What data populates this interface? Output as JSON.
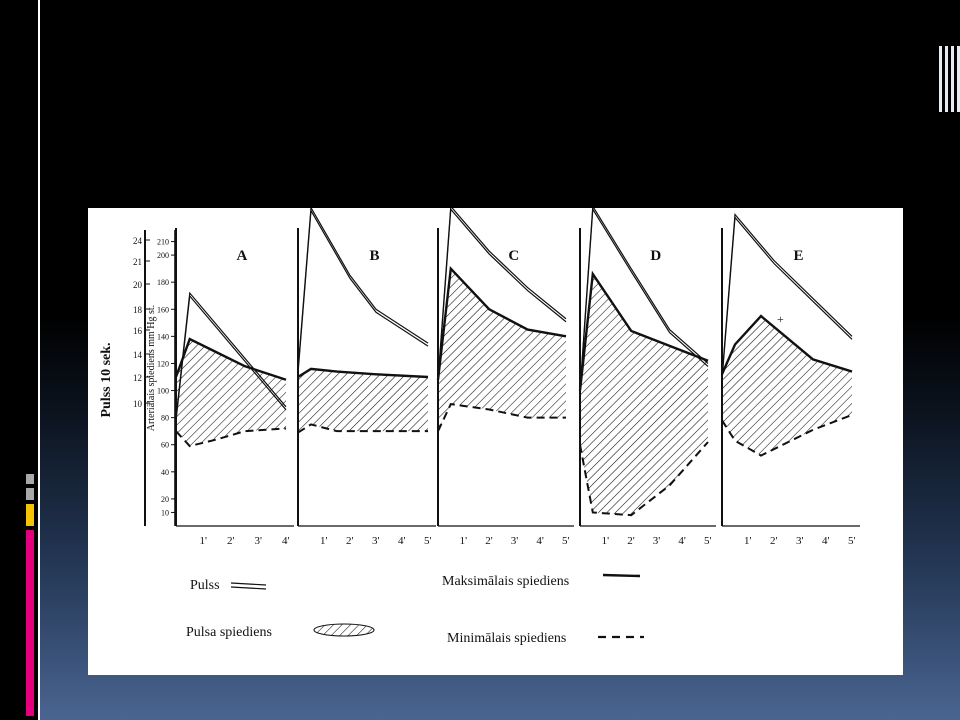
{
  "colors": {
    "background_top": "#000000",
    "background_bottom": "#4a6591",
    "ink": "#111111",
    "deco_gray": "#a8a8a8",
    "deco_yellow": "#f5c400",
    "deco_pink": "#e4007c"
  },
  "chart_data": {
    "type": "line",
    "y_axis_pulse": {
      "label": "Pulss  10  sek.",
      "ticks": [
        "24",
        "21",
        "20",
        "18",
        "16",
        "14",
        "12",
        "10"
      ]
    },
    "y_axis_pressure": {
      "label": "Arteriālais spiediens  mm Hg st.",
      "ticks": [
        "210",
        "200",
        "180",
        "160",
        "140",
        "120",
        "100",
        "80",
        "60",
        "40",
        "20",
        "10"
      ]
    },
    "x_ticks": [
      "1'",
      "2'",
      "3'",
      "4'",
      "5'"
    ],
    "panels": [
      {
        "label": "A",
        "pulse": [
          [
            0,
            80
          ],
          [
            0.5,
            172
          ],
          [
            4,
            88
          ]
        ],
        "max": [
          [
            0,
            110
          ],
          [
            0.5,
            138
          ],
          [
            1.5,
            128
          ],
          [
            2.5,
            118
          ],
          [
            4,
            108
          ]
        ],
        "min": [
          [
            0,
            70
          ],
          [
            0.5,
            59
          ],
          [
            1.5,
            64
          ],
          [
            2.5,
            70
          ],
          [
            4,
            72
          ]
        ]
      },
      {
        "label": "B",
        "pulse": [
          [
            0,
            115
          ],
          [
            0.5,
            235
          ],
          [
            2,
            185
          ],
          [
            3,
            160
          ],
          [
            5,
            135
          ]
        ],
        "max": [
          [
            0,
            110
          ],
          [
            0.5,
            116
          ],
          [
            1.5,
            114
          ],
          [
            3,
            112
          ],
          [
            5,
            110
          ]
        ],
        "min": [
          [
            0,
            69
          ],
          [
            0.5,
            75
          ],
          [
            1.5,
            70
          ],
          [
            3,
            70
          ],
          [
            5,
            70
          ]
        ]
      },
      {
        "label": "C",
        "pulse": [
          [
            0,
            108
          ],
          [
            0.5,
            236
          ],
          [
            2,
            203
          ],
          [
            3.5,
            176
          ],
          [
            5,
            153
          ]
        ],
        "max": [
          [
            0,
            108
          ],
          [
            0.5,
            190
          ],
          [
            2,
            160
          ],
          [
            3.5,
            145
          ],
          [
            5,
            140
          ]
        ],
        "min": [
          [
            0,
            70
          ],
          [
            0.5,
            90
          ],
          [
            2,
            86
          ],
          [
            3.5,
            80
          ],
          [
            5,
            80
          ]
        ]
      },
      {
        "label": "D",
        "pulse": [
          [
            0,
            100
          ],
          [
            0.5,
            236
          ],
          [
            2,
            190
          ],
          [
            3.5,
            145
          ],
          [
            5,
            120
          ]
        ],
        "max": [
          [
            0,
            100
          ],
          [
            0.5,
            186
          ],
          [
            2,
            144
          ],
          [
            3.5,
            133
          ],
          [
            5,
            122
          ]
        ],
        "min": [
          [
            0,
            60
          ],
          [
            0.5,
            10
          ],
          [
            2,
            8
          ],
          [
            3.5,
            30
          ],
          [
            5,
            62
          ]
        ]
      },
      {
        "label": "E",
        "pulse": [
          [
            0,
            110
          ],
          [
            0.5,
            230
          ],
          [
            2,
            196
          ],
          [
            3.5,
            168
          ],
          [
            5,
            140
          ]
        ],
        "max": [
          [
            0,
            112
          ],
          [
            0.5,
            134
          ],
          [
            1.5,
            155
          ],
          [
            3.5,
            123
          ],
          [
            5,
            114
          ]
        ],
        "min": [
          [
            0,
            78
          ],
          [
            0.5,
            63
          ],
          [
            1.5,
            52
          ],
          [
            3.5,
            71
          ],
          [
            5,
            82
          ]
        ]
      }
    ],
    "legend": {
      "pulse": "Pulss",
      "max_pressure": "Maksimālais  spiediens",
      "pulse_pressure": "Pulsa spiediens",
      "min_pressure": "Minimālais spiediens"
    },
    "annotation": "+"
  }
}
